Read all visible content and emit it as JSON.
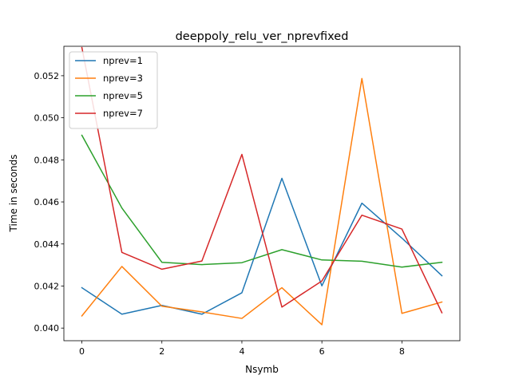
{
  "chart_data": {
    "type": "line",
    "title": "deeppoly_relu_ver_nprevfixed",
    "xlabel": "Nsymb",
    "ylabel": "Time in seconds",
    "x": [
      0,
      1,
      2,
      3,
      4,
      5,
      6,
      7,
      8,
      9
    ],
    "xlim": [
      -0.45,
      9.45
    ],
    "ylim": [
      0.0394,
      0.0534
    ],
    "xticks": [
      0,
      2,
      4,
      6,
      8
    ],
    "yticks": [
      0.04,
      0.042,
      0.044,
      0.046,
      0.048,
      0.05,
      0.052
    ],
    "grid": false,
    "legend_position": "upper left",
    "series": [
      {
        "name": "nprev=1",
        "color": "#1f77b4",
        "values": [
          0.04192,
          0.04066,
          0.04108,
          0.04066,
          0.04168,
          0.04712,
          0.04201,
          0.04594,
          0.04428,
          0.04249
        ]
      },
      {
        "name": "nprev=3",
        "color": "#ff7f0e",
        "values": [
          0.04058,
          0.04293,
          0.04104,
          0.04077,
          0.04046,
          0.04192,
          0.04016,
          0.05187,
          0.0407,
          0.04124
        ]
      },
      {
        "name": "nprev=5",
        "color": "#2ca02c",
        "values": [
          0.04917,
          0.04571,
          0.04313,
          0.04302,
          0.04311,
          0.04373,
          0.04324,
          0.04318,
          0.0429,
          0.04313
        ]
      },
      {
        "name": "nprev=7",
        "color": "#d62728",
        "values": [
          0.05334,
          0.0436,
          0.0428,
          0.04319,
          0.04826,
          0.041,
          0.04224,
          0.04537,
          0.04471,
          0.04073
        ]
      }
    ]
  }
}
